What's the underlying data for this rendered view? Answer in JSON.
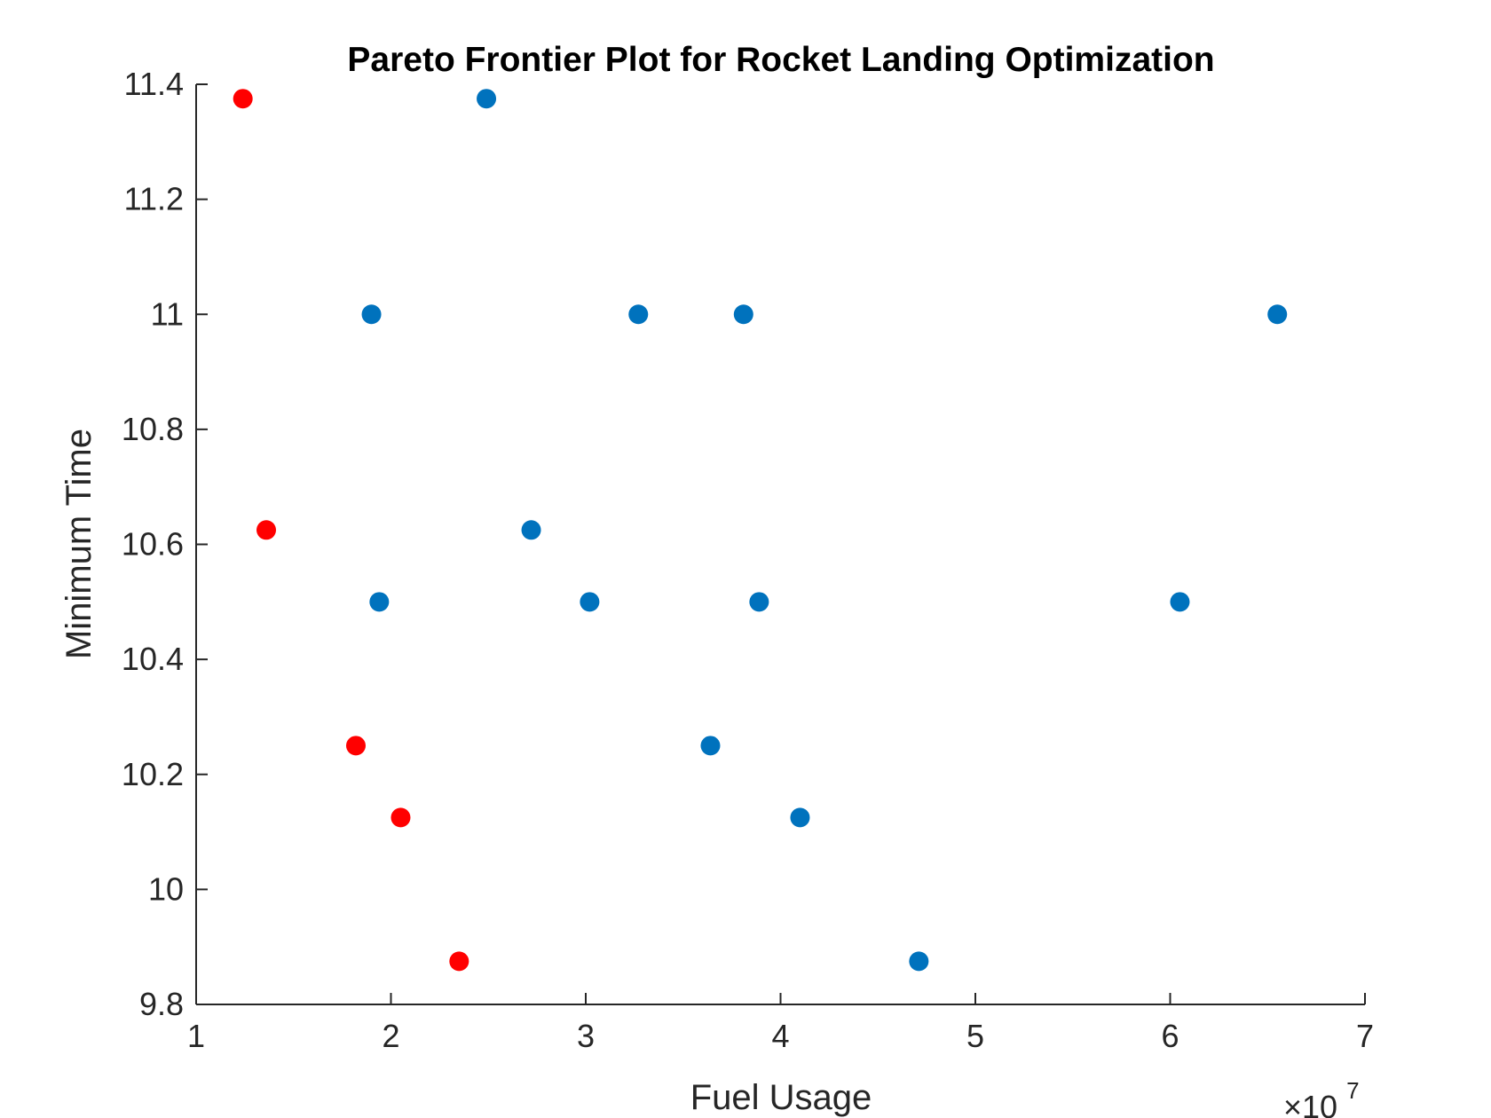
{
  "chart_data": {
    "type": "scatter",
    "title": "Pareto Frontier Plot for Rocket Landing Optimization",
    "xlabel": "Fuel Usage",
    "ylabel": "Minimum Time",
    "x_multiplier": {
      "base": "×10",
      "exponent": "7"
    },
    "xlim": [
      1,
      7
    ],
    "ylim": [
      9.8,
      11.4
    ],
    "xticks": [
      1,
      2,
      3,
      4,
      5,
      6,
      7
    ],
    "xtick_labels": [
      "1",
      "2",
      "3",
      "4",
      "5",
      "6",
      "7"
    ],
    "yticks": [
      9.8,
      10,
      10.2,
      10.4,
      10.6,
      10.8,
      11,
      11.2,
      11.4
    ],
    "ytick_labels": [
      "9.8",
      "10",
      "10.2",
      "10.4",
      "10.6",
      "10.8",
      "11",
      "11.2",
      "11.4"
    ],
    "grid": false,
    "box": false,
    "series": [
      {
        "color": "#0072BD",
        "points": [
          {
            "x": 2.49,
            "y": 11.375
          },
          {
            "x": 1.9,
            "y": 11.0
          },
          {
            "x": 3.27,
            "y": 11.0
          },
          {
            "x": 3.81,
            "y": 11.0
          },
          {
            "x": 6.55,
            "y": 11.0
          },
          {
            "x": 2.72,
            "y": 10.625
          },
          {
            "x": 1.94,
            "y": 10.5
          },
          {
            "x": 3.02,
            "y": 10.5
          },
          {
            "x": 3.89,
            "y": 10.5
          },
          {
            "x": 6.05,
            "y": 10.5
          },
          {
            "x": 3.64,
            "y": 10.25
          },
          {
            "x": 4.1,
            "y": 10.125
          },
          {
            "x": 4.71,
            "y": 9.875
          }
        ]
      },
      {
        "color": "#FF0000",
        "points": [
          {
            "x": 1.24,
            "y": 11.375
          },
          {
            "x": 1.36,
            "y": 10.625
          },
          {
            "x": 1.82,
            "y": 10.25
          },
          {
            "x": 2.05,
            "y": 10.125
          },
          {
            "x": 2.35,
            "y": 9.875
          }
        ]
      }
    ]
  }
}
